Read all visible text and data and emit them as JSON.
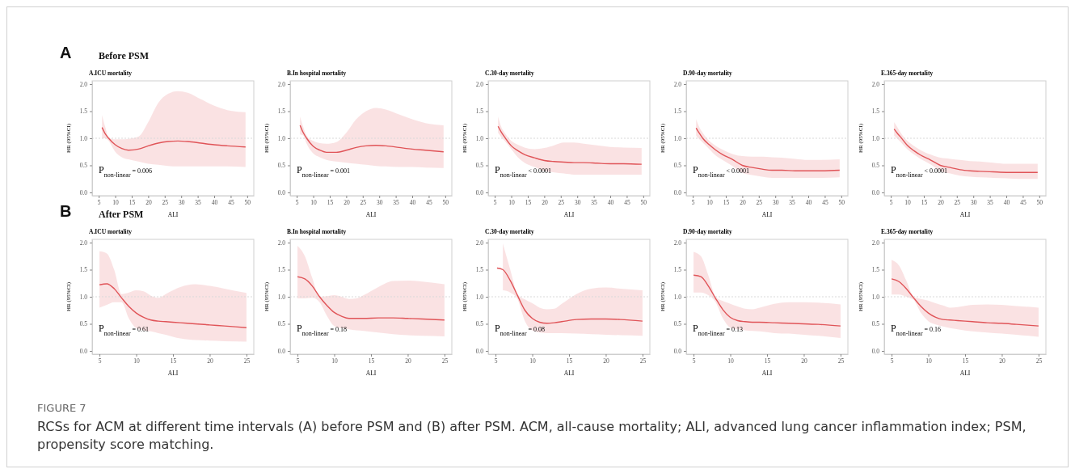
{
  "chart_data": [
    {
      "type": "line",
      "title": "A.ICU mortality",
      "xlabel": "ALI",
      "ylabel": "HR (95%CI)",
      "annotations": [
        "P$_{non-linear}$ = 0.006",
        "A",
        "Before PSM"
      ],
      "xlim": [
        3,
        52
      ],
      "ylim": [
        -0.06,
        2.06
      ],
      "xticks": [
        5,
        10,
        15,
        20,
        25,
        30,
        35,
        40,
        45,
        50
      ],
      "yticks": [
        {
          "value": 0,
          "label": "0.0"
        },
        {
          "value": 0.5,
          "label": "0.5"
        },
        {
          "value": 1,
          "label": "1.0"
        },
        {
          "value": 1.5,
          "label": "1.5"
        },
        {
          "value": 2,
          "label": "2.0"
        }
      ],
      "ref_lines": [
        {
          "axis": "y",
          "value": 1,
          "color": "#d9d9d9",
          "line_style": "dotted"
        }
      ],
      "x": [
        6,
        7,
        8,
        10,
        12,
        14,
        17,
        20,
        23,
        26,
        29,
        32,
        36,
        40,
        44,
        49.5
      ],
      "series": [
        {
          "color": "#e05458",
          "values": [
            1.2,
            1.08,
            1.0,
            0.88,
            0.81,
            0.78,
            0.8,
            0.86,
            0.91,
            0.94,
            0.95,
            0.94,
            0.91,
            0.88,
            0.86,
            0.84
          ],
          "upper": [
            1.43,
            1.2,
            1.02,
            0.98,
            0.98,
            0.99,
            1.03,
            1.3,
            1.65,
            1.82,
            1.87,
            1.84,
            1.72,
            1.6,
            1.52,
            1.48
          ],
          "lower": [
            1.0,
            1.0,
            0.95,
            0.75,
            0.65,
            0.61,
            0.57,
            0.53,
            0.51,
            0.49,
            0.48,
            0.48,
            0.48,
            0.48,
            0.48,
            0.47
          ]
        }
      ]
    },
    {
      "type": "line",
      "title": "B.In hospital mortality",
      "xlabel": "ALI",
      "ylabel": "HR (95%CI)",
      "annotations": [
        "P$_{non-linear}$ = 0.001"
      ],
      "xlim": [
        3,
        52
      ],
      "ylim": [
        -0.06,
        2.06
      ],
      "xticks": [
        5,
        10,
        15,
        20,
        25,
        30,
        35,
        40,
        45,
        50
      ],
      "yticks": [
        {
          "value": 0,
          "label": "0.0"
        },
        {
          "value": 0.5,
          "label": "0.5"
        },
        {
          "value": 1,
          "label": "1.0"
        },
        {
          "value": 1.5,
          "label": "1.5"
        },
        {
          "value": 2,
          "label": "2.0"
        }
      ],
      "ref_lines": [
        {
          "axis": "y",
          "value": 1,
          "color": "#d9d9d9",
          "line_style": "dotted"
        }
      ],
      "x": [
        6,
        7,
        8,
        10,
        12,
        14,
        17,
        20,
        23,
        26,
        29,
        32,
        36,
        40,
        44,
        49.5
      ],
      "series": [
        {
          "color": "#e05458",
          "values": [
            1.24,
            1.1,
            1.0,
            0.85,
            0.78,
            0.74,
            0.74,
            0.78,
            0.83,
            0.86,
            0.87,
            0.86,
            0.83,
            0.8,
            0.78,
            0.75
          ],
          "upper": [
            1.4,
            1.2,
            1.05,
            0.95,
            0.91,
            0.9,
            0.93,
            1.1,
            1.35,
            1.5,
            1.56,
            1.53,
            1.44,
            1.35,
            1.28,
            1.24
          ],
          "lower": [
            1.07,
            1.05,
            0.9,
            0.72,
            0.65,
            0.6,
            0.57,
            0.55,
            0.53,
            0.51,
            0.49,
            0.48,
            0.47,
            0.47,
            0.46,
            0.45
          ]
        }
      ]
    },
    {
      "type": "line",
      "title": "C.30-day mortality",
      "xlabel": "ALI",
      "ylabel": "HR (95%CI)",
      "annotations": [
        "P$_{non-linear}$ < 0.0001"
      ],
      "xlim": [
        3,
        52
      ],
      "ylim": [
        -0.06,
        2.06
      ],
      "xticks": [
        5,
        10,
        15,
        20,
        25,
        30,
        35,
        40,
        45,
        50
      ],
      "yticks": [
        {
          "value": 0,
          "label": "0.0"
        },
        {
          "value": 0.5,
          "label": "0.5"
        },
        {
          "value": 1,
          "label": "1.0"
        },
        {
          "value": 1.5,
          "label": "1.5"
        },
        {
          "value": 2,
          "label": "2.0"
        }
      ],
      "ref_lines": [
        {
          "axis": "y",
          "value": 1,
          "color": "#d9d9d9",
          "line_style": "dotted"
        }
      ],
      "x": [
        6,
        7,
        8,
        10,
        12,
        14,
        17,
        20,
        23,
        26,
        29,
        32,
        36,
        40,
        44,
        49.5
      ],
      "series": [
        {
          "color": "#e05458",
          "values": [
            1.22,
            1.11,
            1.02,
            0.86,
            0.77,
            0.7,
            0.64,
            0.59,
            0.57,
            0.56,
            0.55,
            0.55,
            0.54,
            0.53,
            0.53,
            0.52
          ],
          "upper": [
            1.4,
            1.2,
            1.1,
            0.95,
            0.88,
            0.83,
            0.8,
            0.82,
            0.87,
            0.92,
            0.92,
            0.9,
            0.87,
            0.84,
            0.83,
            0.82
          ],
          "lower": [
            1.1,
            1.02,
            0.95,
            0.8,
            0.65,
            0.55,
            0.47,
            0.4,
            0.37,
            0.35,
            0.33,
            0.33,
            0.33,
            0.33,
            0.33,
            0.33
          ]
        }
      ]
    },
    {
      "type": "line",
      "title": "D.90-day mortality",
      "xlabel": "ALI",
      "ylabel": "HR (95%CI)",
      "annotations": [
        "P$_{non-linear}$ < 0.0001"
      ],
      "xlim": [
        3,
        52
      ],
      "ylim": [
        -0.06,
        2.06
      ],
      "xticks": [
        5,
        10,
        15,
        20,
        25,
        30,
        35,
        40,
        45,
        50
      ],
      "yticks": [
        {
          "value": 0,
          "label": "0.0"
        },
        {
          "value": 0.5,
          "label": "0.5"
        },
        {
          "value": 1,
          "label": "1.0"
        },
        {
          "value": 1.5,
          "label": "1.5"
        },
        {
          "value": 2,
          "label": "2.0"
        }
      ],
      "ref_lines": [
        {
          "axis": "y",
          "value": 1,
          "color": "#d9d9d9",
          "line_style": "dotted"
        }
      ],
      "x": [
        6,
        7,
        8,
        10,
        12,
        14,
        17,
        20,
        23,
        26,
        29,
        32,
        36,
        40,
        44,
        49.5
      ],
      "series": [
        {
          "color": "#e05458",
          "values": [
            1.19,
            1.09,
            1.0,
            0.88,
            0.78,
            0.7,
            0.61,
            0.5,
            0.46,
            0.43,
            0.41,
            0.41,
            0.4,
            0.4,
            0.4,
            0.41
          ],
          "upper": [
            1.35,
            1.2,
            1.1,
            0.95,
            0.86,
            0.79,
            0.71,
            0.67,
            0.66,
            0.66,
            0.65,
            0.64,
            0.62,
            0.6,
            0.6,
            0.61
          ],
          "lower": [
            1.05,
            0.98,
            0.92,
            0.8,
            0.68,
            0.6,
            0.49,
            0.36,
            0.32,
            0.29,
            0.27,
            0.27,
            0.27,
            0.27,
            0.27,
            0.28
          ]
        }
      ]
    },
    {
      "type": "line",
      "title": "E.365-day mortality",
      "xlabel": "ALI",
      "ylabel": "HR (95%CI)",
      "annotations": [
        "P$_{non-linear}$ < 0.0001"
      ],
      "xlim": [
        3,
        52
      ],
      "ylim": [
        -0.06,
        2.06
      ],
      "xticks": [
        5,
        10,
        15,
        20,
        25,
        30,
        35,
        40,
        45,
        50
      ],
      "yticks": [
        {
          "value": 0,
          "label": "0.0"
        },
        {
          "value": 0.5,
          "label": "0.5"
        },
        {
          "value": 1,
          "label": "1.0"
        },
        {
          "value": 1.5,
          "label": "1.5"
        },
        {
          "value": 2,
          "label": "2.0"
        }
      ],
      "ref_lines": [
        {
          "axis": "y",
          "value": 1,
          "color": "#d9d9d9",
          "line_style": "dotted"
        }
      ],
      "x": [
        6,
        7,
        8,
        10,
        12,
        14,
        17,
        20,
        23,
        26,
        29,
        32,
        36,
        40,
        44,
        49.5
      ],
      "series": [
        {
          "color": "#e05458",
          "values": [
            1.17,
            1.09,
            1.02,
            0.87,
            0.77,
            0.69,
            0.6,
            0.5,
            0.46,
            0.42,
            0.4,
            0.39,
            0.38,
            0.37,
            0.37,
            0.37
          ],
          "upper": [
            1.3,
            1.2,
            1.1,
            0.95,
            0.86,
            0.78,
            0.7,
            0.64,
            0.62,
            0.6,
            0.58,
            0.57,
            0.55,
            0.53,
            0.53,
            0.53
          ],
          "lower": [
            1.05,
            0.99,
            0.93,
            0.8,
            0.7,
            0.62,
            0.52,
            0.4,
            0.35,
            0.31,
            0.29,
            0.28,
            0.27,
            0.26,
            0.25,
            0.25
          ]
        }
      ]
    },
    {
      "type": "line",
      "title": "A.ICU mortality",
      "xlabel": "ALI",
      "ylabel": "HR (95%CI)",
      "annotations": [
        "P$_{non-linear}$ = 0.61",
        "B",
        "After PSM"
      ],
      "xlim": [
        4,
        26
      ],
      "ylim": [
        -0.06,
        2.06
      ],
      "xticks": [
        5,
        10,
        15,
        20,
        25
      ],
      "yticks": [
        {
          "value": 0,
          "label": "0.0"
        },
        {
          "value": 0.5,
          "label": "0.5"
        },
        {
          "value": 1,
          "label": "1.0"
        },
        {
          "value": 1.5,
          "label": "1.5"
        },
        {
          "value": 2,
          "label": "2.0"
        }
      ],
      "ref_lines": [
        {
          "axis": "y",
          "value": 1,
          "color": "#d9d9d9",
          "line_style": "dotted"
        }
      ],
      "x": [
        5,
        6,
        7,
        8,
        9,
        10,
        11,
        12,
        13,
        14,
        16,
        18,
        20,
        22,
        25
      ],
      "series": [
        {
          "color": "#e05458",
          "values": [
            1.22,
            1.24,
            1.15,
            0.98,
            0.82,
            0.7,
            0.62,
            0.57,
            0.55,
            0.54,
            0.52,
            0.5,
            0.48,
            0.46,
            0.43
          ],
          "upper": [
            1.84,
            1.8,
            1.5,
            1.05,
            1.08,
            1.12,
            1.1,
            1.02,
            0.98,
            1.05,
            1.18,
            1.23,
            1.2,
            1.15,
            1.07
          ],
          "lower": [
            0.8,
            0.85,
            0.9,
            0.9,
            0.6,
            0.42,
            0.38,
            0.36,
            0.33,
            0.3,
            0.23,
            0.2,
            0.19,
            0.18,
            0.17
          ]
        }
      ]
    },
    {
      "type": "line",
      "title": "B.In hospital mortality",
      "xlabel": "ALI",
      "ylabel": "HR (95%CI)",
      "annotations": [
        "P$_{non-linear}$ = 0.18"
      ],
      "xlim": [
        4,
        26
      ],
      "ylim": [
        -0.06,
        2.06
      ],
      "xticks": [
        5,
        10,
        15,
        20,
        25
      ],
      "yticks": [
        {
          "value": 0,
          "label": "0.0"
        },
        {
          "value": 0.5,
          "label": "0.5"
        },
        {
          "value": 1,
          "label": "1.0"
        },
        {
          "value": 1.5,
          "label": "1.5"
        },
        {
          "value": 2,
          "label": "2.0"
        }
      ],
      "ref_lines": [
        {
          "axis": "y",
          "value": 1,
          "color": "#d9d9d9",
          "line_style": "dotted"
        }
      ],
      "x": [
        5,
        6,
        7,
        8,
        9,
        10,
        11,
        12,
        13,
        14,
        16,
        18,
        20,
        22,
        25
      ],
      "series": [
        {
          "color": "#e05458",
          "values": [
            1.37,
            1.33,
            1.2,
            1.0,
            0.84,
            0.71,
            0.64,
            0.6,
            0.6,
            0.6,
            0.61,
            0.61,
            0.6,
            0.59,
            0.57
          ],
          "upper": [
            1.94,
            1.75,
            1.35,
            1.0,
            1.01,
            1.03,
            1.0,
            0.96,
            0.97,
            1.03,
            1.18,
            1.29,
            1.3,
            1.28,
            1.23
          ],
          "lower": [
            0.97,
            0.97,
            0.98,
            0.9,
            0.65,
            0.46,
            0.42,
            0.4,
            0.38,
            0.37,
            0.34,
            0.31,
            0.29,
            0.28,
            0.27
          ]
        }
      ]
    },
    {
      "type": "line",
      "title": "C.30-day mortality",
      "xlabel": "ALI",
      "ylabel": "HR (95%CI)",
      "annotations": [
        "P$_{non-linear}$ = 0.08"
      ],
      "xlim": [
        4,
        26
      ],
      "ylim": [
        -0.06,
        2.06
      ],
      "xticks": [
        5,
        10,
        15,
        20,
        25
      ],
      "yticks": [
        {
          "value": 0,
          "label": "0.0"
        },
        {
          "value": 0.5,
          "label": "0.5"
        },
        {
          "value": 1,
          "label": "1.0"
        },
        {
          "value": 1.5,
          "label": "1.5"
        },
        {
          "value": 2,
          "label": "2.0"
        }
      ],
      "ref_lines": [
        {
          "axis": "y",
          "value": 1,
          "color": "#d9d9d9",
          "line_style": "dotted"
        }
      ],
      "x": [
        5.2,
        6,
        7,
        8,
        9,
        10,
        11,
        12,
        13,
        14,
        16,
        18,
        20,
        22,
        25
      ],
      "series": [
        {
          "color": "#e05458",
          "values": [
            1.53,
            1.5,
            1.3,
            1.02,
            0.75,
            0.6,
            0.53,
            0.51,
            0.52,
            0.54,
            0.58,
            0.59,
            0.59,
            0.58,
            0.55
          ],
          "upper": [
            null,
            1.98,
            1.5,
            1.05,
            0.95,
            0.88,
            0.8,
            0.77,
            0.78,
            0.87,
            1.05,
            1.15,
            1.17,
            1.15,
            1.12
          ],
          "lower": [
            null,
            1.12,
            1.08,
            0.95,
            0.55,
            0.38,
            0.34,
            0.33,
            0.33,
            0.33,
            0.32,
            0.31,
            0.3,
            0.29,
            0.28
          ]
        }
      ]
    },
    {
      "type": "line",
      "title": "D.90-day mortality",
      "xlabel": "ALI",
      "ylabel": "HR (95%CI)",
      "annotations": [
        "P$_{non-linear}$ = 0.13"
      ],
      "xlim": [
        4,
        26
      ],
      "ylim": [
        -0.06,
        2.06
      ],
      "xticks": [
        5,
        10,
        15,
        20,
        25
      ],
      "yticks": [
        {
          "value": 0,
          "label": "0.0"
        },
        {
          "value": 0.5,
          "label": "0.5"
        },
        {
          "value": 1,
          "label": "1.0"
        },
        {
          "value": 1.5,
          "label": "1.5"
        },
        {
          "value": 2,
          "label": "2.0"
        }
      ],
      "ref_lines": [
        {
          "axis": "y",
          "value": 1,
          "color": "#d9d9d9",
          "line_style": "dotted"
        }
      ],
      "x": [
        5,
        6,
        7,
        8,
        9,
        10,
        11,
        12,
        13,
        14,
        16,
        18,
        20,
        22,
        25
      ],
      "series": [
        {
          "color": "#e05458",
          "values": [
            1.4,
            1.37,
            1.2,
            0.97,
            0.76,
            0.62,
            0.56,
            0.54,
            0.53,
            0.53,
            0.52,
            0.51,
            0.5,
            0.49,
            0.46
          ],
          "upper": [
            1.83,
            1.75,
            1.4,
            1.0,
            0.92,
            0.87,
            0.82,
            0.78,
            0.77,
            0.8,
            0.87,
            0.9,
            0.9,
            0.89,
            0.86
          ],
          "lower": [
            1.08,
            1.08,
            1.03,
            0.9,
            0.6,
            0.43,
            0.4,
            0.38,
            0.37,
            0.36,
            0.33,
            0.32,
            0.3,
            0.28,
            0.24
          ]
        }
      ]
    },
    {
      "type": "line",
      "title": "E.365-day mortality",
      "xlabel": "ALI",
      "ylabel": "HR (95%CI)",
      "annotations": [
        "P$_{non-linear}$ = 0.16",
        "FIGURE 7",
        "RCSs for ACM at different time intervals (A) before PSM and (B) after PSM. ACM, all-cause mortality; ALI, advanced lung cancer inflammation index; PSM, propensity score matching."
      ],
      "xlim": [
        4,
        26
      ],
      "ylim": [
        -0.06,
        2.06
      ],
      "xticks": [
        5,
        10,
        15,
        20,
        25
      ],
      "yticks": [
        {
          "value": 0,
          "label": "0.0"
        },
        {
          "value": 0.5,
          "label": "0.5"
        },
        {
          "value": 1,
          "label": "1.0"
        },
        {
          "value": 1.5,
          "label": "1.5"
        },
        {
          "value": 2,
          "label": "2.0"
        }
      ],
      "ref_lines": [
        {
          "axis": "y",
          "value": 1,
          "color": "#d9d9d9",
          "line_style": "dotted"
        }
      ],
      "x": [
        5,
        6,
        7,
        8,
        9,
        10,
        11,
        12,
        13,
        14,
        16,
        18,
        20,
        22,
        25
      ],
      "series": [
        {
          "color": "#e05458",
          "values": [
            1.33,
            1.28,
            1.15,
            0.98,
            0.82,
            0.7,
            0.62,
            0.58,
            0.57,
            0.56,
            0.54,
            0.52,
            0.51,
            0.49,
            0.46
          ],
          "upper": [
            1.68,
            1.58,
            1.3,
            1.0,
            0.96,
            0.93,
            0.88,
            0.84,
            0.8,
            0.81,
            0.85,
            0.86,
            0.85,
            0.83,
            0.8
          ],
          "lower": [
            1.04,
            1.04,
            1.0,
            0.94,
            0.7,
            0.55,
            0.49,
            0.45,
            0.42,
            0.4,
            0.36,
            0.34,
            0.32,
            0.3,
            0.26
          ]
        }
      ]
    }
  ]
}
